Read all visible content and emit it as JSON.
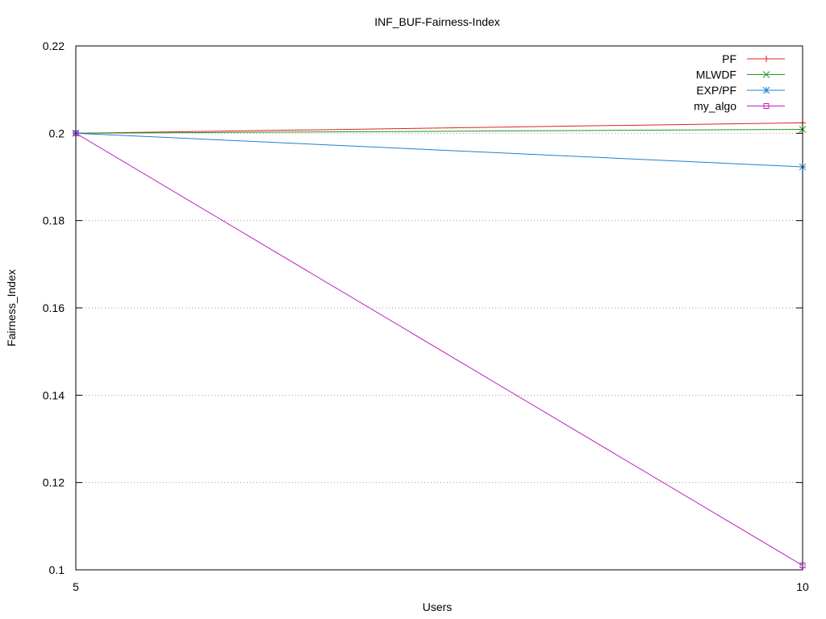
{
  "chart_data": {
    "type": "line",
    "title": "INF_BUF-Fairness-Index",
    "xlabel": "Users",
    "ylabel": "Fairness_Index",
    "x": [
      5,
      10
    ],
    "xlim": [
      5,
      10
    ],
    "ylim": [
      0.1,
      0.22
    ],
    "x_ticks": [
      "5",
      "10"
    ],
    "y_ticks": [
      "0.1",
      "0.12",
      "0.14",
      "0.16",
      "0.18",
      "0.2",
      "0.22"
    ],
    "grid": "horizontal dotted",
    "legend_position": "top-right",
    "series": [
      {
        "name": "PF",
        "marker": "plus",
        "color": "#e0201f",
        "values": [
          0.2,
          0.2024
        ]
      },
      {
        "name": "MLWDF",
        "marker": "cross",
        "color": "#1f9b1f",
        "values": [
          0.2,
          0.2009
        ]
      },
      {
        "name": "EXP/PF",
        "marker": "star",
        "color": "#1f7fcc",
        "values": [
          0.2,
          0.1923
        ]
      },
      {
        "name": "my_algo",
        "marker": "square",
        "color": "#c020c0",
        "values": [
          0.2,
          0.101
        ]
      }
    ]
  }
}
